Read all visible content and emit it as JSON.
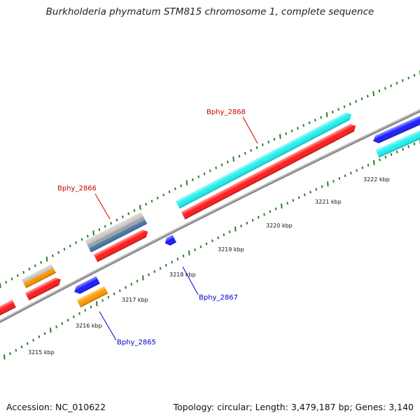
{
  "title": "Burkholderia phymatum STM815 chromosome 1, complete sequence",
  "footer": {
    "accession": "Accession: NC_010622",
    "summary": "Topology: circular; Length: 3,479,187 bp; Genes: 3,140"
  },
  "colors": {
    "backbone": "#8a8a8a",
    "tick": "#2a7a2a",
    "label_red": "#cc0000",
    "label_blue": "#0000cc",
    "gene_red": "#ff1a1a",
    "gene_blue": "#1a1aff",
    "gene_cyan": "#22f0f0",
    "gene_orange": "#ff9900",
    "gene_gray": "#b8b8b8",
    "gene_steelblue": "#4a7fb5"
  },
  "axis": {
    "ticks": [
      "3215 kbp",
      "3216 kbp",
      "3217 kbp",
      "3218 kbp",
      "3219 kbp",
      "3220 kbp",
      "3221 kbp",
      "3222 kbp"
    ]
  },
  "labels": {
    "bphy_2868": "Bphy_2868",
    "bphy_2866": "Bphy_2866",
    "bphy_2867": "Bphy_2867",
    "bphy_2865": "Bphy_2865"
  },
  "features": [
    {
      "id": "f1",
      "color": "gene_red",
      "lane": "outer"
    },
    {
      "id": "f2",
      "color": "gene_orange",
      "lane": "outer"
    },
    {
      "id": "f3",
      "color": "gene_red",
      "lane": "outer"
    },
    {
      "id": "f4",
      "color": "gene_gray",
      "lane": "outer"
    },
    {
      "id": "f5",
      "color": "gene_steelblue",
      "lane": "outer"
    },
    {
      "id": "f6",
      "color": "gene_red",
      "lane": "outer"
    },
    {
      "id": "f7",
      "color": "gene_cyan",
      "lane": "outer"
    },
    {
      "id": "f8",
      "color": "gene_red",
      "lane": "outer"
    },
    {
      "id": "f9",
      "color": "gene_blue",
      "lane": "outer"
    },
    {
      "id": "f10",
      "color": "gene_cyan",
      "lane": "outer"
    },
    {
      "id": "f11",
      "color": "gene_blue",
      "lane": "inner"
    },
    {
      "id": "f12",
      "color": "gene_orange",
      "lane": "inner"
    },
    {
      "id": "f13",
      "color": "gene_blue",
      "lane": "inner"
    }
  ]
}
